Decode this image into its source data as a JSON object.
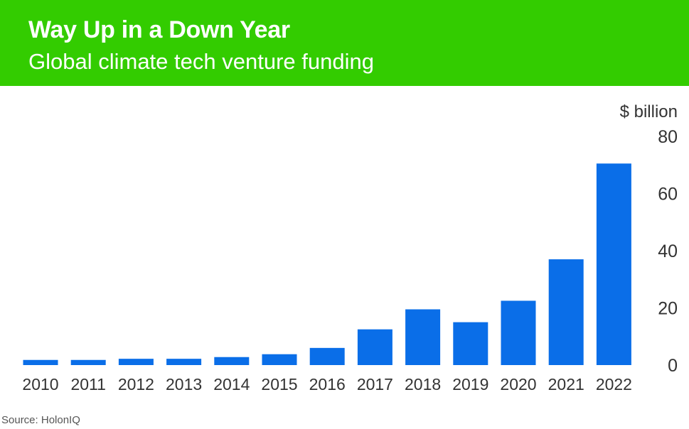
{
  "header": {
    "title": "Way Up in a Down Year",
    "subtitle": "Global climate tech venture funding"
  },
  "source": "Source: HolonIQ",
  "colors": {
    "header_bg": "#33cc00",
    "bar": "#0a6ee8"
  },
  "chart_data": {
    "type": "bar",
    "title": "Way Up in a Down Year",
    "subtitle": "Global climate tech venture funding",
    "ylabel": "$ billion",
    "xlabel": "",
    "ylim": [
      0,
      80
    ],
    "yticks": [
      0,
      20,
      40,
      60,
      80
    ],
    "grid": false,
    "categories": [
      "2010",
      "2011",
      "2012",
      "2013",
      "2014",
      "2015",
      "2016",
      "2017",
      "2018",
      "2019",
      "2020",
      "2021",
      "2022"
    ],
    "values": [
      1.8,
      1.8,
      2.2,
      2.2,
      2.8,
      3.8,
      6.0,
      12.5,
      19.5,
      15.0,
      22.5,
      37.0,
      70.5
    ]
  }
}
